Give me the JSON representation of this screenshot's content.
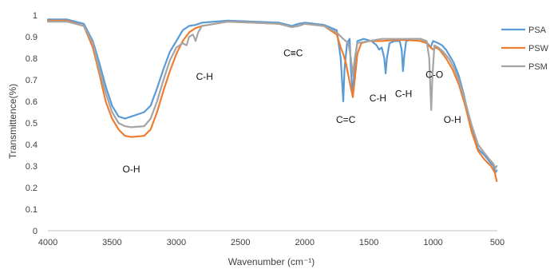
{
  "chart_data": {
    "type": "line",
    "xlabel": "Wavenumber (cm⁻¹)",
    "ylabel": "Transmittence(%)",
    "xlim": [
      4000,
      500
    ],
    "ylim": [
      0,
      1
    ],
    "x_reversed": true,
    "x_ticks": [
      "4000",
      "3500",
      "3000",
      "2500",
      "2000",
      "1500",
      "1000",
      "500"
    ],
    "y_ticks": [
      "0",
      "0.1",
      "0.2",
      "0.3",
      "0.4",
      "0.5",
      "0.6",
      "0.7",
      "0.8",
      "0.9",
      "1"
    ],
    "grid": false,
    "legend_position": "right",
    "series": [
      {
        "name": "PSA",
        "color": "#5b9bd5",
        "points": [
          [
            4000,
            0.98
          ],
          [
            3850,
            0.98
          ],
          [
            3720,
            0.96
          ],
          [
            3650,
            0.88
          ],
          [
            3600,
            0.78
          ],
          [
            3550,
            0.67
          ],
          [
            3500,
            0.58
          ],
          [
            3450,
            0.53
          ],
          [
            3400,
            0.52
          ],
          [
            3350,
            0.53
          ],
          [
            3250,
            0.55
          ],
          [
            3200,
            0.58
          ],
          [
            3150,
            0.66
          ],
          [
            3100,
            0.75
          ],
          [
            3050,
            0.83
          ],
          [
            3000,
            0.88
          ],
          [
            2950,
            0.93
          ],
          [
            2900,
            0.95
          ],
          [
            2850,
            0.955
          ],
          [
            2800,
            0.965
          ],
          [
            2600,
            0.975
          ],
          [
            2400,
            0.97
          ],
          [
            2200,
            0.965
          ],
          [
            2100,
            0.95
          ],
          [
            2050,
            0.96
          ],
          [
            2000,
            0.965
          ],
          [
            1850,
            0.955
          ],
          [
            1750,
            0.93
          ],
          [
            1720,
            0.8
          ],
          [
            1700,
            0.6
          ],
          [
            1690,
            0.75
          ],
          [
            1670,
            0.87
          ],
          [
            1650,
            0.89
          ],
          [
            1640,
            0.75
          ],
          [
            1625,
            0.62
          ],
          [
            1610,
            0.78
          ],
          [
            1590,
            0.88
          ],
          [
            1540,
            0.89
          ],
          [
            1480,
            0.88
          ],
          [
            1440,
            0.86
          ],
          [
            1420,
            0.84
          ],
          [
            1400,
            0.85
          ],
          [
            1380,
            0.8
          ],
          [
            1370,
            0.73
          ],
          [
            1360,
            0.8
          ],
          [
            1340,
            0.87
          ],
          [
            1300,
            0.88
          ],
          [
            1260,
            0.88
          ],
          [
            1245,
            0.84
          ],
          [
            1235,
            0.74
          ],
          [
            1225,
            0.81
          ],
          [
            1210,
            0.88
          ],
          [
            1150,
            0.89
          ],
          [
            1100,
            0.89
          ],
          [
            1060,
            0.88
          ],
          [
            1030,
            0.86
          ],
          [
            1020,
            0.85
          ],
          [
            1000,
            0.88
          ],
          [
            960,
            0.87
          ],
          [
            930,
            0.86
          ],
          [
            900,
            0.84
          ],
          [
            870,
            0.81
          ],
          [
            840,
            0.78
          ],
          [
            800,
            0.72
          ],
          [
            760,
            0.63
          ],
          [
            700,
            0.47
          ],
          [
            650,
            0.38
          ],
          [
            600,
            0.35
          ],
          [
            560,
            0.32
          ],
          [
            530,
            0.3
          ],
          [
            515,
            0.27
          ],
          [
            505,
            0.28
          ]
        ]
      },
      {
        "name": "PSW",
        "color": "#ed7d31",
        "points": [
          [
            4000,
            0.975
          ],
          [
            3850,
            0.975
          ],
          [
            3720,
            0.95
          ],
          [
            3650,
            0.85
          ],
          [
            3600,
            0.73
          ],
          [
            3550,
            0.6
          ],
          [
            3500,
            0.52
          ],
          [
            3450,
            0.47
          ],
          [
            3400,
            0.44
          ],
          [
            3350,
            0.435
          ],
          [
            3250,
            0.44
          ],
          [
            3200,
            0.47
          ],
          [
            3150,
            0.55
          ],
          [
            3100,
            0.65
          ],
          [
            3050,
            0.74
          ],
          [
            3000,
            0.82
          ],
          [
            2950,
            0.88
          ],
          [
            2900,
            0.92
          ],
          [
            2850,
            0.94
          ],
          [
            2800,
            0.95
          ],
          [
            2600,
            0.97
          ],
          [
            2400,
            0.965
          ],
          [
            2200,
            0.96
          ],
          [
            2100,
            0.945
          ],
          [
            2050,
            0.95
          ],
          [
            2000,
            0.96
          ],
          [
            1850,
            0.95
          ],
          [
            1750,
            0.91
          ],
          [
            1720,
            0.85
          ],
          [
            1700,
            0.82
          ],
          [
            1680,
            0.78
          ],
          [
            1660,
            0.72
          ],
          [
            1640,
            0.66
          ],
          [
            1625,
            0.62
          ],
          [
            1610,
            0.7
          ],
          [
            1590,
            0.82
          ],
          [
            1560,
            0.87
          ],
          [
            1500,
            0.88
          ],
          [
            1400,
            0.88
          ],
          [
            1300,
            0.885
          ],
          [
            1200,
            0.885
          ],
          [
            1100,
            0.88
          ],
          [
            1050,
            0.87
          ],
          [
            1020,
            0.85
          ],
          [
            1000,
            0.84
          ],
          [
            980,
            0.85
          ],
          [
            950,
            0.84
          ],
          [
            900,
            0.8
          ],
          [
            850,
            0.75
          ],
          [
            800,
            0.68
          ],
          [
            750,
            0.58
          ],
          [
            700,
            0.46
          ],
          [
            650,
            0.37
          ],
          [
            600,
            0.33
          ],
          [
            550,
            0.3
          ],
          [
            520,
            0.27
          ],
          [
            505,
            0.23
          ]
        ]
      },
      {
        "name": "PSM",
        "color": "#a5a5a5",
        "points": [
          [
            4000,
            0.97
          ],
          [
            3850,
            0.97
          ],
          [
            3720,
            0.95
          ],
          [
            3650,
            0.87
          ],
          [
            3600,
            0.75
          ],
          [
            3550,
            0.64
          ],
          [
            3500,
            0.55
          ],
          [
            3450,
            0.5
          ],
          [
            3400,
            0.485
          ],
          [
            3350,
            0.48
          ],
          [
            3250,
            0.485
          ],
          [
            3200,
            0.52
          ],
          [
            3150,
            0.6
          ],
          [
            3100,
            0.7
          ],
          [
            3050,
            0.79
          ],
          [
            3000,
            0.85
          ],
          [
            2950,
            0.87
          ],
          [
            2920,
            0.86
          ],
          [
            2900,
            0.9
          ],
          [
            2870,
            0.91
          ],
          [
            2850,
            0.88
          ],
          [
            2830,
            0.92
          ],
          [
            2800,
            0.95
          ],
          [
            2600,
            0.97
          ],
          [
            2400,
            0.965
          ],
          [
            2200,
            0.96
          ],
          [
            2100,
            0.945
          ],
          [
            2050,
            0.95
          ],
          [
            2000,
            0.96
          ],
          [
            1850,
            0.95
          ],
          [
            1750,
            0.92
          ],
          [
            1700,
            0.89
          ],
          [
            1660,
            0.87
          ],
          [
            1640,
            0.8
          ],
          [
            1625,
            0.72
          ],
          [
            1610,
            0.8
          ],
          [
            1590,
            0.87
          ],
          [
            1500,
            0.88
          ],
          [
            1400,
            0.89
          ],
          [
            1300,
            0.89
          ],
          [
            1200,
            0.89
          ],
          [
            1100,
            0.89
          ],
          [
            1050,
            0.88
          ],
          [
            1030,
            0.8
          ],
          [
            1015,
            0.56
          ],
          [
            1005,
            0.72
          ],
          [
            990,
            0.86
          ],
          [
            960,
            0.85
          ],
          [
            920,
            0.83
          ],
          [
            880,
            0.8
          ],
          [
            840,
            0.76
          ],
          [
            800,
            0.7
          ],
          [
            750,
            0.6
          ],
          [
            700,
            0.49
          ],
          [
            650,
            0.4
          ],
          [
            600,
            0.36
          ],
          [
            560,
            0.33
          ],
          [
            530,
            0.31
          ],
          [
            515,
            0.29
          ],
          [
            505,
            0.3
          ]
        ]
      }
    ],
    "annotations": [
      {
        "text": "O-H",
        "x": 3350,
        "y": 0.27
      },
      {
        "text": "C-H",
        "x": 2780,
        "y": 0.7
      },
      {
        "text": "C≡C",
        "x": 2090,
        "y": 0.81
      },
      {
        "text": "C=C",
        "x": 1680,
        "y": 0.5
      },
      {
        "text": "C-H",
        "x": 1430,
        "y": 0.6
      },
      {
        "text": "C-H",
        "x": 1230,
        "y": 0.62
      },
      {
        "text": "C-O",
        "x": 990,
        "y": 0.71
      },
      {
        "text": "O-H",
        "x": 850,
        "y": 0.5
      }
    ]
  }
}
